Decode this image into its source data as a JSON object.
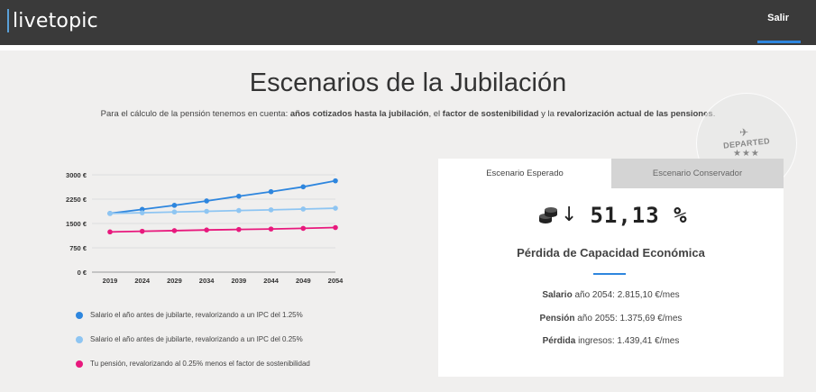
{
  "header": {
    "logo_text": "livetopic",
    "logout_label": "Salir"
  },
  "page": {
    "title": "Escenarios de la Jubilación",
    "subtitle_prefix": "Para el cálculo de la pensión tenemos en cuenta: ",
    "subtitle_b1": "años cotizados hasta la jubilación",
    "subtitle_mid1": ", el ",
    "subtitle_b2": "factor de sostenibilidad",
    "subtitle_mid2": " y la ",
    "subtitle_b3": "revalorización actual de las pensiones",
    "subtitle_suffix": "."
  },
  "stamp": {
    "plane_icon": "plane-icon",
    "text": "DEPARTED",
    "stars": "★★★"
  },
  "chart_data": {
    "type": "line",
    "x": [
      "2019",
      "2024",
      "2029",
      "2034",
      "2039",
      "2044",
      "2049",
      "2054"
    ],
    "ylim": [
      0,
      3000
    ],
    "yticks": [
      0,
      750,
      1500,
      2250,
      3000
    ],
    "ytick_labels": [
      "0 €",
      "750 €",
      "1500 €",
      "2250 €",
      "3000 €"
    ],
    "series": [
      {
        "name": "Salario el año antes de jubilarte, revalorizando a un IPC del 1.25%",
        "color": "#2e86de",
        "values": [
          1810,
          1935,
          2060,
          2195,
          2340,
          2480,
          2630,
          2815
        ]
      },
      {
        "name": "Salario el año antes de jubilarte, revalorizando a un IPC del 0.25%",
        "color": "#8ec5f2",
        "values": [
          1810,
          1830,
          1855,
          1875,
          1900,
          1920,
          1945,
          1970
        ]
      },
      {
        "name": "Tu pensión, revalorizando al 0.25% menos el factor de sostenibilidad",
        "color": "#e8197d",
        "values": [
          1240,
          1260,
          1280,
          1300,
          1315,
          1330,
          1350,
          1375
        ]
      }
    ]
  },
  "card": {
    "tabs": [
      {
        "label": "Escenario  Esperado",
        "active": true
      },
      {
        "label": "Escenario Conservador",
        "active": false
      }
    ],
    "coins_icon": "coins-icon",
    "arrow_icon": "arrow-down-icon",
    "arrow_glyph": "↓",
    "metric_value": "51,13 %",
    "metric_label": "Pérdida de Capacidad Económica",
    "details": [
      {
        "bold": "Salario",
        "rest": " año 2054: 2.815,10 €/mes"
      },
      {
        "bold": "Pensión",
        "rest": " año 2055: 1.375,69 €/mes"
      },
      {
        "bold": "Pérdida",
        "rest": " ingresos: 1.439,41 €/mes"
      }
    ]
  }
}
